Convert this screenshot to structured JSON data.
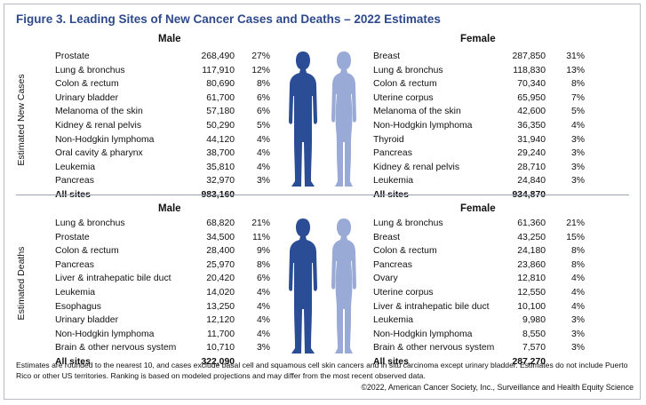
{
  "title": "Figure 3. Leading Sites of New Cancer Cases and Deaths – 2022 Estimates",
  "colors": {
    "male_figure": "#2b4d96",
    "female_figure": "#9aaad6",
    "title": "#2e4a8b"
  },
  "new_cases": {
    "section_label": "Estimated New Cases",
    "male": {
      "heading": "Male",
      "rows": [
        {
          "site": "Prostate",
          "count": "268,490",
          "pct": "27%"
        },
        {
          "site": "Lung & bronchus",
          "count": "117,910",
          "pct": "12%"
        },
        {
          "site": "Colon & rectum",
          "count": "80,690",
          "pct": "8%"
        },
        {
          "site": "Urinary bladder",
          "count": "61,700",
          "pct": "6%"
        },
        {
          "site": "Melanoma of the skin",
          "count": "57,180",
          "pct": "6%"
        },
        {
          "site": "Kidney & renal pelvis",
          "count": "50,290",
          "pct": "5%"
        },
        {
          "site": "Non-Hodgkin lymphoma",
          "count": "44,120",
          "pct": "4%"
        },
        {
          "site": "Oral cavity & pharynx",
          "count": "38,700",
          "pct": "4%"
        },
        {
          "site": "Leukemia",
          "count": "35,810",
          "pct": "4%"
        },
        {
          "site": "Pancreas",
          "count": "32,970",
          "pct": "3%"
        }
      ],
      "total_label": "All sites",
      "total_count": "983,160"
    },
    "female": {
      "heading": "Female",
      "rows": [
        {
          "site": "Breast",
          "count": "287,850",
          "pct": "31%"
        },
        {
          "site": "Lung & bronchus",
          "count": "118,830",
          "pct": "13%"
        },
        {
          "site": "Colon & rectum",
          "count": "70,340",
          "pct": "8%"
        },
        {
          "site": "Uterine corpus",
          "count": "65,950",
          "pct": "7%"
        },
        {
          "site": "Melanoma of the skin",
          "count": "42,600",
          "pct": "5%"
        },
        {
          "site": "Non-Hodgkin lymphoma",
          "count": "36,350",
          "pct": "4%"
        },
        {
          "site": "Thyroid",
          "count": "31,940",
          "pct": "3%"
        },
        {
          "site": "Pancreas",
          "count": "29,240",
          "pct": "3%"
        },
        {
          "site": "Kidney & renal pelvis",
          "count": "28,710",
          "pct": "3%"
        },
        {
          "site": "Leukemia",
          "count": "24,840",
          "pct": "3%"
        }
      ],
      "total_label": "All sites",
      "total_count": "934,870"
    }
  },
  "deaths": {
    "section_label": "Estimated Deaths",
    "male": {
      "heading": "Male",
      "rows": [
        {
          "site": "Lung & bronchus",
          "count": "68,820",
          "pct": "21%"
        },
        {
          "site": "Prostate",
          "count": "34,500",
          "pct": "11%"
        },
        {
          "site": "Colon & rectum",
          "count": "28,400",
          "pct": "9%"
        },
        {
          "site": "Pancreas",
          "count": "25,970",
          "pct": "8%"
        },
        {
          "site": "Liver & intrahepatic bile duct",
          "count": "20,420",
          "pct": "6%"
        },
        {
          "site": "Leukemia",
          "count": "14,020",
          "pct": "4%"
        },
        {
          "site": "Esophagus",
          "count": "13,250",
          "pct": "4%"
        },
        {
          "site": "Urinary bladder",
          "count": "12,120",
          "pct": "4%"
        },
        {
          "site": "Non-Hodgkin lymphoma",
          "count": "11,700",
          "pct": "4%"
        },
        {
          "site": "Brain & other nervous system",
          "count": "10,710",
          "pct": "3%"
        }
      ],
      "total_label": "All sites",
      "total_count": "322,090"
    },
    "female": {
      "heading": "Female",
      "rows": [
        {
          "site": "Lung & bronchus",
          "count": "61,360",
          "pct": "21%"
        },
        {
          "site": "Breast",
          "count": "43,250",
          "pct": "15%"
        },
        {
          "site": "Colon & rectum",
          "count": "24,180",
          "pct": "8%"
        },
        {
          "site": "Pancreas",
          "count": "23,860",
          "pct": "8%"
        },
        {
          "site": "Ovary",
          "count": "12,810",
          "pct": "4%"
        },
        {
          "site": "Uterine corpus",
          "count": "12,550",
          "pct": "4%"
        },
        {
          "site": "Liver & intrahepatic bile duct",
          "count": "10,100",
          "pct": "4%"
        },
        {
          "site": "Leukemia",
          "count": "9,980",
          "pct": "3%"
        },
        {
          "site": "Non-Hodgkin lymphoma",
          "count": "8,550",
          "pct": "3%"
        },
        {
          "site": "Brain & other nervous system",
          "count": "7,570",
          "pct": "3%"
        }
      ],
      "total_label": "All sites",
      "total_count": "287,270"
    }
  },
  "footnote": "Estimates are rounded to the nearest 10, and cases exclude basal cell and squamous cell skin cancers and in situ carcinoma except urinary bladder. Estimates do not include Puerto Rico or other US territories. Ranking is based on modeled projections and may differ from the most recent observed data.",
  "copyright": "©2022, American Cancer Society, Inc., Surveillance and Health Equity Science"
}
